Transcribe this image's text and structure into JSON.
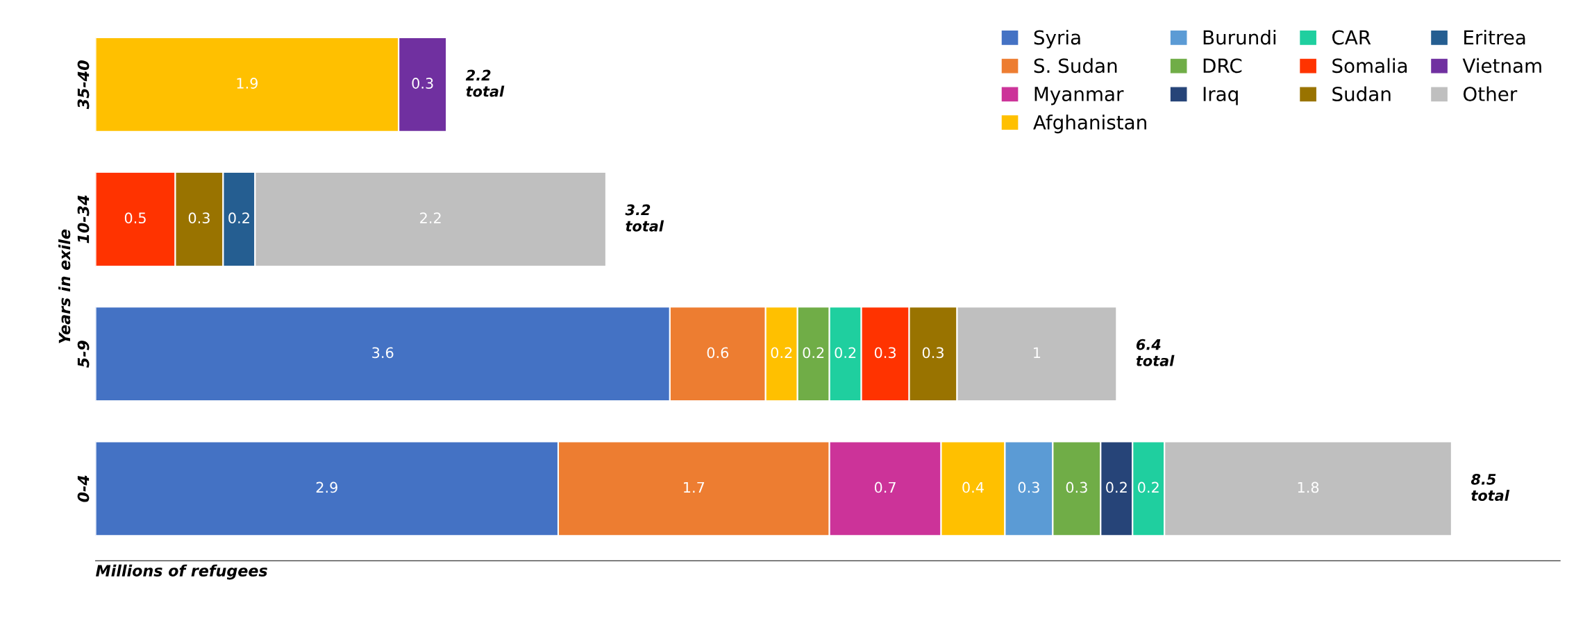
{
  "chart_data": {
    "type": "bar",
    "orientation": "horizontal",
    "stacked": true,
    "data_labels": true,
    "legend": "top right",
    "grid": false,
    "ylabel": "Years in exile",
    "xlabel": "Millions of refugees",
    "categories": [
      "35-40",
      "10-34",
      "5-9",
      "0-4"
    ],
    "totals": [
      "2.2\ntotal",
      "3.2\ntotal",
      "6.4\ntotal",
      "8.5\ntotal"
    ],
    "series": [
      {
        "name": "Syria",
        "color": "#4472c4",
        "values": [
          null,
          null,
          3.6,
          2.9
        ]
      },
      {
        "name": "S. Sudan",
        "color": "#ed7d31",
        "values": [
          null,
          null,
          0.6,
          1.7
        ]
      },
      {
        "name": "Myanmar",
        "color": "#cc3399",
        "values": [
          null,
          null,
          null,
          0.7
        ]
      },
      {
        "name": "Afghanistan",
        "color": "#ffc000",
        "values": [
          1.9,
          null,
          0.2,
          0.4
        ]
      },
      {
        "name": "Burundi",
        "color": "#5b9bd5",
        "values": [
          null,
          null,
          null,
          0.3
        ]
      },
      {
        "name": "DRC",
        "color": "#70ad47",
        "values": [
          null,
          null,
          0.2,
          0.3
        ]
      },
      {
        "name": "Iraq",
        "color": "#264478",
        "values": [
          null,
          null,
          null,
          0.2
        ]
      },
      {
        "name": "CAR",
        "color": "#1fcf9f",
        "values": [
          null,
          null,
          0.2,
          0.2
        ]
      },
      {
        "name": "Somalia",
        "color": "#ff3300",
        "values": [
          null,
          0.5,
          0.3,
          null
        ]
      },
      {
        "name": "Sudan",
        "color": "#997300",
        "values": [
          null,
          0.3,
          0.3,
          null
        ]
      },
      {
        "name": "Eritrea",
        "color": "#255e91",
        "values": [
          null,
          0.2,
          null,
          null
        ]
      },
      {
        "name": "Vietnam",
        "color": "#7030a0",
        "values": [
          0.3,
          null,
          null,
          null
        ]
      },
      {
        "name": "Other",
        "color": "#bfbfbf",
        "values": [
          null,
          2.2,
          1,
          1.8
        ]
      }
    ]
  }
}
